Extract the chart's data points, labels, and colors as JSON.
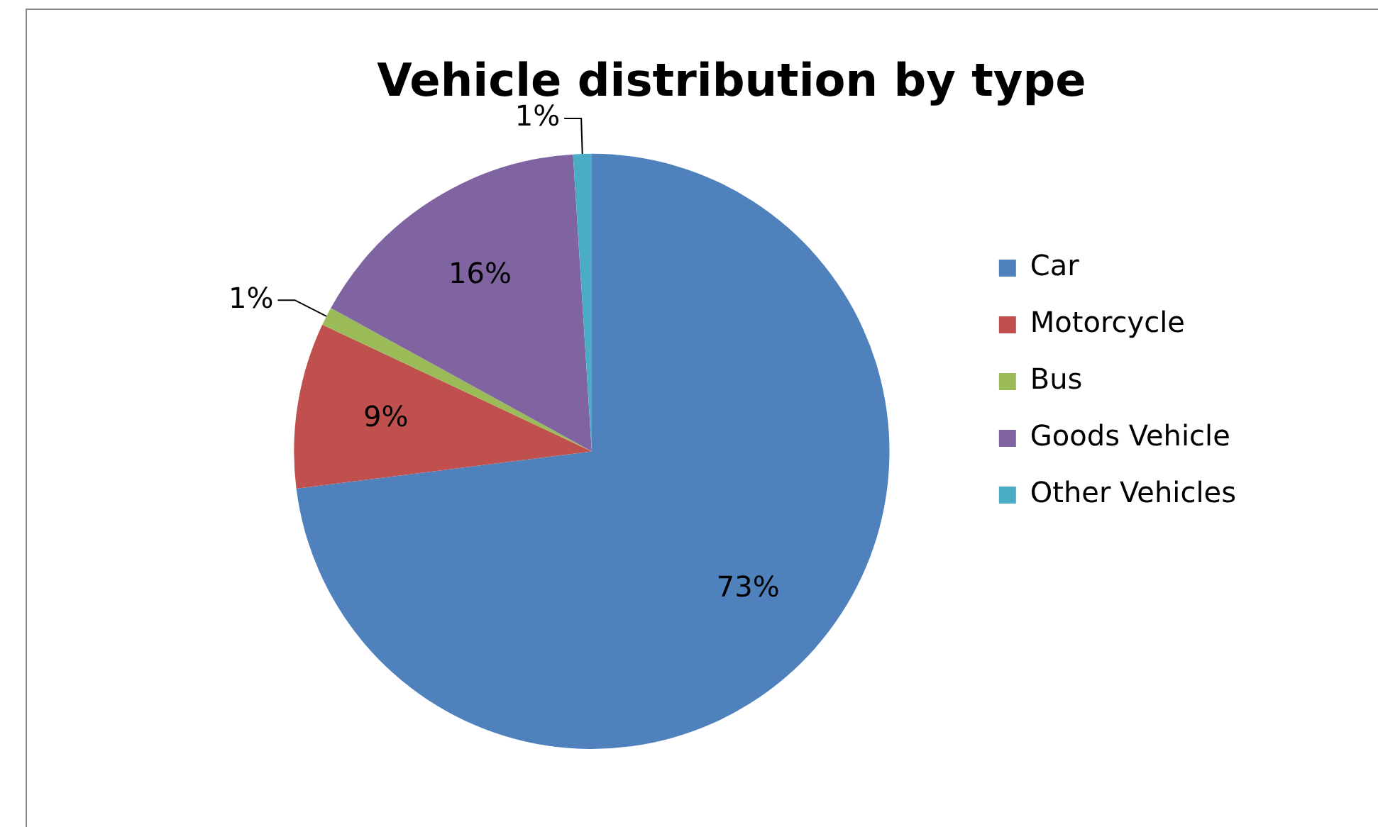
{
  "chart_data": {
    "type": "pie",
    "title": "Vehicle distribution by type",
    "categories": [
      "Car",
      "Motorcycle",
      "Bus",
      "Goods Vehicle",
      "Other Vehicles"
    ],
    "values": [
      73,
      9,
      1,
      16,
      1
    ],
    "colors": [
      "#4f81bd",
      "#c0504d",
      "#9bbb59",
      "#8064a2",
      "#4bacc6"
    ],
    "value_labels": [
      "73%",
      "9%",
      "1%",
      "16%",
      "1%"
    ],
    "legend": "right"
  }
}
